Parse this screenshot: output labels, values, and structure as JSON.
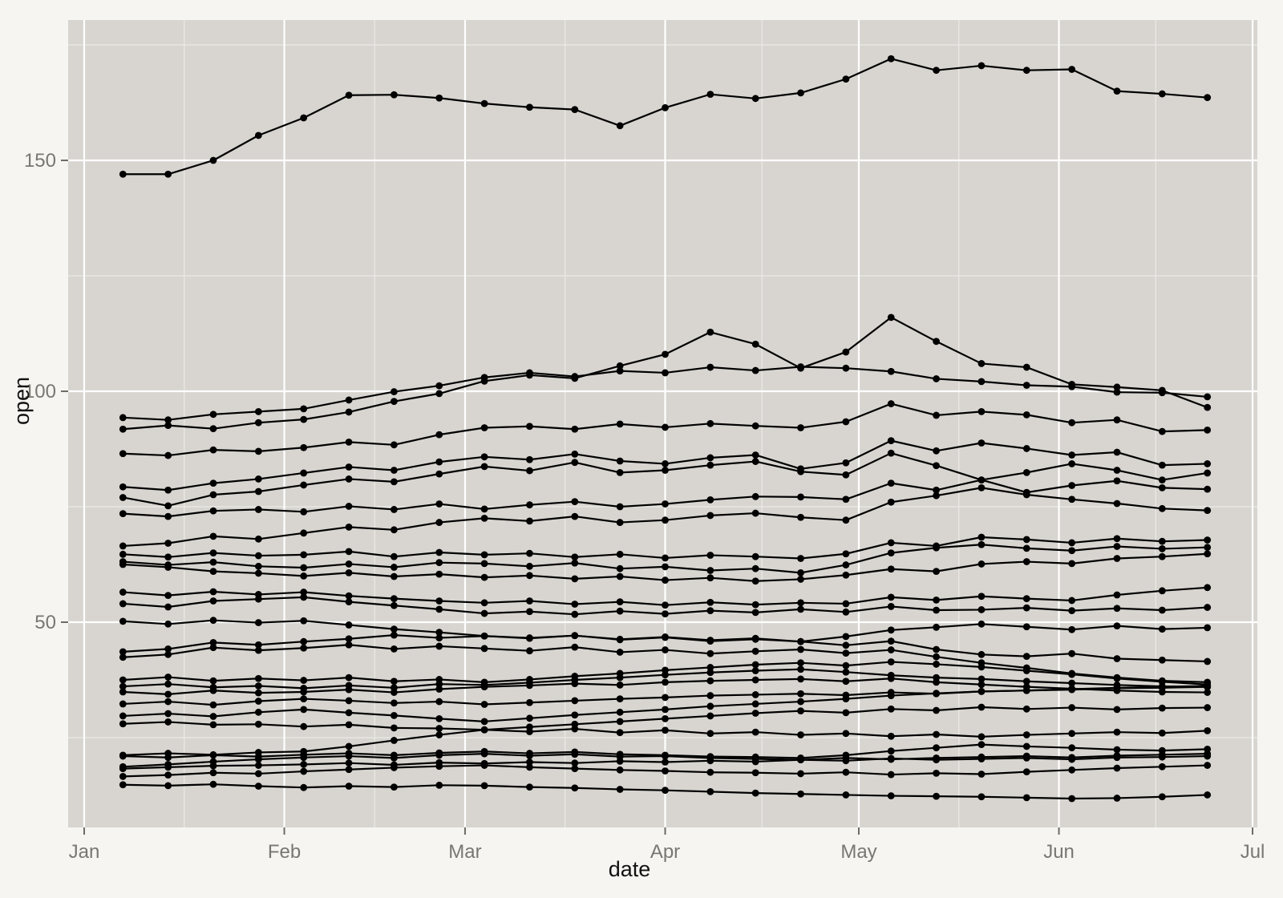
{
  "figure": {
    "background": "#f6f5f2",
    "panel_background": "#d8d5d0",
    "grid_major_color": "#ffffff",
    "grid_minor_color": "#eceae7",
    "tick_color": "#6f6b66",
    "tick_label_color": "#7a7671",
    "series_color": "#000000"
  },
  "chart_data": {
    "type": "line",
    "title": "",
    "xlabel": "date",
    "ylabel": "open",
    "legend": "none",
    "grid": "on",
    "x_unit": "day-of-year",
    "xlim": [
      -1.5,
      182.7
    ],
    "ylim": [
      5.6,
      180.4
    ],
    "x_ticks": [
      {
        "label": "Jan",
        "day": 1
      },
      {
        "label": "Feb",
        "day": 32
      },
      {
        "label": "Mar",
        "day": 60
      },
      {
        "label": "Apr",
        "day": 91
      },
      {
        "label": "May",
        "day": 121
      },
      {
        "label": "Jun",
        "day": 152
      },
      {
        "label": "Jul",
        "day": 182
      }
    ],
    "x_minor_days": [
      16.5,
      46,
      75.5,
      106,
      136.5,
      167
    ],
    "y_ticks": [
      50,
      100,
      150
    ],
    "y_minor": [
      25,
      75,
      125,
      175
    ],
    "x": [
      7,
      14,
      21,
      28,
      35,
      42,
      49,
      56,
      63,
      70,
      77,
      84,
      91,
      98,
      105,
      112,
      119,
      126,
      133,
      140,
      147,
      154,
      161,
      168,
      175
    ],
    "series": [
      {
        "name": "series-01",
        "values": [
          147.0,
          147.0,
          150.0,
          155.4,
          159.2,
          164.1,
          164.2,
          163.5,
          162.3,
          161.5,
          161.0,
          157.5,
          161.4,
          164.3,
          163.4,
          164.6,
          167.6,
          172.0,
          169.5,
          170.5,
          169.5,
          169.7,
          165.0,
          164.4,
          163.6
        ]
      },
      {
        "name": "series-02",
        "values": [
          94.3,
          93.8,
          95.0,
          95.6,
          96.2,
          98.1,
          99.9,
          101.2,
          103.0,
          104.0,
          103.2,
          104.4,
          104.0,
          105.2,
          104.5,
          105.3,
          105.0,
          104.3,
          102.7,
          102.1,
          101.3,
          101.0,
          99.8,
          99.7,
          98.8
        ]
      },
      {
        "name": "series-03",
        "values": [
          91.8,
          92.6,
          91.9,
          93.2,
          93.9,
          95.5,
          97.8,
          99.5,
          102.2,
          103.5,
          102.8,
          105.5,
          108.0,
          112.8,
          110.2,
          105.0,
          108.5,
          116.0,
          110.8,
          106.0,
          105.2,
          101.5,
          100.9,
          100.2,
          96.5
        ]
      },
      {
        "name": "series-04",
        "values": [
          86.5,
          86.1,
          87.3,
          87.0,
          87.8,
          89.0,
          88.4,
          90.6,
          92.1,
          92.4,
          91.8,
          92.9,
          92.2,
          93.0,
          92.5,
          92.1,
          93.4,
          97.3,
          94.8,
          95.6,
          94.9,
          93.2,
          93.8,
          91.3,
          91.6
        ]
      },
      {
        "name": "series-05",
        "values": [
          79.3,
          78.6,
          80.1,
          81.0,
          82.3,
          83.6,
          82.9,
          84.7,
          85.8,
          85.2,
          86.4,
          84.9,
          84.3,
          85.6,
          86.2,
          83.2,
          84.5,
          89.3,
          87.1,
          88.8,
          87.6,
          86.2,
          86.8,
          84.0,
          84.3
        ]
      },
      {
        "name": "series-06",
        "values": [
          77.0,
          75.2,
          77.6,
          78.3,
          79.7,
          81.0,
          80.4,
          82.1,
          83.7,
          82.8,
          84.6,
          82.4,
          82.9,
          84.0,
          84.8,
          82.6,
          81.9,
          86.6,
          83.9,
          80.8,
          82.4,
          84.3,
          82.9,
          80.8,
          82.3
        ]
      },
      {
        "name": "series-07",
        "values": [
          73.5,
          72.9,
          74.1,
          74.4,
          73.9,
          75.1,
          74.4,
          75.6,
          74.5,
          75.4,
          76.1,
          75.0,
          75.6,
          76.5,
          77.2,
          77.1,
          76.6,
          80.1,
          78.6,
          80.8,
          78.1,
          79.6,
          80.6,
          79.1,
          78.8
        ]
      },
      {
        "name": "series-08",
        "values": [
          66.5,
          67.1,
          68.6,
          68.0,
          69.3,
          70.6,
          70.0,
          71.6,
          72.5,
          71.9,
          72.9,
          71.6,
          72.1,
          73.1,
          73.6,
          72.7,
          72.1,
          76.0,
          77.4,
          79.1,
          77.6,
          76.6,
          75.7,
          74.6,
          74.2
        ]
      },
      {
        "name": "series-09",
        "values": [
          64.7,
          64.1,
          65.0,
          64.4,
          64.6,
          65.3,
          64.2,
          65.1,
          64.6,
          64.9,
          64.1,
          64.7,
          63.9,
          64.5,
          64.2,
          63.8,
          64.8,
          67.2,
          66.5,
          68.4,
          67.9,
          67.2,
          68.1,
          67.5,
          67.8
        ]
      },
      {
        "name": "series-10",
        "values": [
          63.1,
          62.4,
          63.0,
          62.1,
          61.8,
          62.6,
          61.9,
          62.9,
          62.7,
          62.1,
          62.8,
          61.6,
          62.0,
          61.2,
          61.6,
          60.7,
          62.4,
          65.0,
          66.1,
          66.8,
          66.0,
          65.5,
          66.4,
          65.9,
          66.2
        ]
      },
      {
        "name": "series-11",
        "values": [
          62.5,
          61.9,
          61.0,
          60.6,
          60.0,
          60.7,
          59.9,
          60.4,
          59.7,
          60.1,
          59.4,
          59.9,
          59.1,
          59.6,
          58.9,
          59.3,
          60.2,
          61.5,
          61.0,
          62.6,
          63.1,
          62.7,
          63.8,
          64.2,
          64.8
        ]
      },
      {
        "name": "series-12",
        "values": [
          56.5,
          55.8,
          56.6,
          56.0,
          56.5,
          55.7,
          55.1,
          54.6,
          54.2,
          54.6,
          53.9,
          54.4,
          53.7,
          54.3,
          53.8,
          54.2,
          54.0,
          55.4,
          54.8,
          55.6,
          55.1,
          54.7,
          55.9,
          56.8,
          57.5
        ]
      },
      {
        "name": "series-13",
        "values": [
          54.0,
          53.3,
          54.6,
          55.0,
          55.4,
          54.4,
          53.6,
          52.8,
          51.9,
          52.3,
          51.7,
          52.4,
          51.8,
          52.5,
          52.1,
          52.8,
          52.2,
          53.4,
          52.6,
          52.7,
          53.1,
          52.5,
          53.0,
          52.6,
          53.2
        ]
      },
      {
        "name": "series-14",
        "values": [
          50.2,
          49.6,
          50.4,
          49.9,
          50.3,
          49.4,
          48.5,
          47.8,
          47.0,
          46.6,
          47.1,
          46.3,
          46.8,
          46.1,
          46.5,
          45.8,
          46.9,
          48.3,
          48.9,
          49.6,
          49.0,
          48.4,
          49.2,
          48.5,
          48.8
        ]
      },
      {
        "name": "series-15",
        "values": [
          43.6,
          44.2,
          45.6,
          45.1,
          45.8,
          46.4,
          47.2,
          46.6,
          47.0,
          46.5,
          47.1,
          46.2,
          46.7,
          45.9,
          46.3,
          45.8,
          45.0,
          45.9,
          44.1,
          43.0,
          42.6,
          43.2,
          42.1,
          41.8,
          41.5
        ]
      },
      {
        "name": "series-16",
        "values": [
          42.4,
          43.0,
          44.5,
          43.9,
          44.4,
          45.1,
          44.2,
          44.8,
          44.3,
          43.8,
          44.6,
          43.5,
          44.0,
          43.2,
          43.7,
          44.1,
          43.3,
          44.0,
          42.5,
          41.2,
          40.1,
          38.9,
          38.0,
          37.3,
          37.0
        ]
      },
      {
        "name": "series-17",
        "values": [
          37.5,
          38.1,
          37.3,
          37.8,
          37.4,
          38.0,
          37.2,
          37.6,
          37.0,
          37.6,
          38.3,
          38.9,
          39.6,
          40.2,
          40.8,
          41.2,
          40.6,
          41.4,
          40.9,
          40.3,
          39.5,
          38.7,
          37.8,
          37.1,
          36.5
        ]
      },
      {
        "name": "series-18",
        "values": [
          36.1,
          36.6,
          35.9,
          36.2,
          35.7,
          36.3,
          35.8,
          36.6,
          36.4,
          36.9,
          37.5,
          38.0,
          38.6,
          39.1,
          39.5,
          39.8,
          39.2,
          38.5,
          38.0,
          37.7,
          37.2,
          36.8,
          36.4,
          36.1,
          36.0
        ]
      },
      {
        "name": "series-19",
        "values": [
          34.9,
          34.4,
          35.2,
          34.7,
          34.9,
          35.4,
          34.8,
          35.5,
          36.0,
          36.3,
          36.7,
          36.4,
          37.0,
          37.3,
          37.5,
          37.7,
          37.2,
          37.8,
          37.0,
          36.5,
          36.0,
          35.6,
          35.2,
          34.9,
          34.8
        ]
      },
      {
        "name": "series-20",
        "values": [
          32.3,
          32.8,
          32.1,
          32.9,
          33.4,
          33.0,
          32.5,
          32.8,
          32.2,
          32.6,
          33.0,
          33.4,
          33.7,
          34.1,
          34.3,
          34.5,
          34.2,
          34.8,
          34.5,
          35.0,
          35.2,
          35.5,
          35.8,
          36.0,
          36.2
        ]
      },
      {
        "name": "series-21",
        "values": [
          29.7,
          30.2,
          29.6,
          30.5,
          31.1,
          30.4,
          29.8,
          29.1,
          28.5,
          29.2,
          29.9,
          30.5,
          31.1,
          31.8,
          32.3,
          32.8,
          33.4,
          34.1,
          34.6,
          35.0,
          35.2,
          35.4,
          35.7,
          35.8,
          36.0
        ]
      },
      {
        "name": "series-22",
        "values": [
          28.0,
          28.4,
          27.8,
          27.9,
          27.4,
          27.8,
          27.1,
          27.0,
          26.7,
          27.3,
          27.9,
          28.5,
          29.1,
          29.7,
          30.3,
          30.8,
          30.4,
          31.2,
          30.9,
          31.6,
          31.2,
          31.5,
          31.1,
          31.4,
          31.5
        ]
      },
      {
        "name": "series-23",
        "values": [
          21.2,
          21.6,
          21.3,
          21.8,
          22.0,
          23.1,
          24.4,
          25.6,
          26.7,
          26.3,
          26.9,
          26.1,
          26.6,
          25.9,
          26.2,
          25.6,
          25.9,
          25.3,
          25.7,
          25.2,
          25.6,
          25.9,
          26.2,
          26.0,
          26.5
        ]
      },
      {
        "name": "series-24",
        "values": [
          21.0,
          20.7,
          21.2,
          20.9,
          21.3,
          21.6,
          21.2,
          21.7,
          22.0,
          21.6,
          21.9,
          21.4,
          21.2,
          20.9,
          20.8,
          20.6,
          21.2,
          22.1,
          22.8,
          23.5,
          23.1,
          22.8,
          22.4,
          22.2,
          22.5
        ]
      },
      {
        "name": "series-25",
        "values": [
          18.7,
          19.2,
          19.8,
          20.3,
          20.7,
          21.0,
          20.6,
          21.2,
          21.5,
          21.1,
          21.4,
          20.9,
          21.0,
          20.6,
          20.4,
          20.2,
          20.6,
          20.3,
          20.6,
          20.8,
          21.0,
          20.7,
          21.1,
          21.3,
          21.5
        ]
      },
      {
        "name": "series-26",
        "values": [
          18.3,
          18.6,
          18.9,
          19.0,
          19.2,
          19.5,
          19.1,
          19.6,
          19.4,
          19.7,
          19.5,
          19.9,
          19.7,
          20.0,
          19.8,
          20.2,
          20.0,
          20.5,
          20.2,
          20.4,
          20.6,
          20.3,
          20.7,
          20.8,
          21.0
        ]
      },
      {
        "name": "series-27",
        "values": [
          16.6,
          16.9,
          17.4,
          17.2,
          17.7,
          18.1,
          18.5,
          18.8,
          19.0,
          18.6,
          18.3,
          18.0,
          17.8,
          17.5,
          17.4,
          17.2,
          17.5,
          17.0,
          17.3,
          17.1,
          17.6,
          18.0,
          18.4,
          18.7,
          19.0
        ]
      },
      {
        "name": "series-28",
        "values": [
          14.8,
          14.6,
          14.9,
          14.5,
          14.2,
          14.5,
          14.3,
          14.7,
          14.6,
          14.3,
          14.1,
          13.8,
          13.6,
          13.3,
          13.0,
          12.8,
          12.6,
          12.4,
          12.3,
          12.2,
          12.0,
          11.8,
          11.9,
          12.2,
          12.6
        ]
      }
    ]
  }
}
